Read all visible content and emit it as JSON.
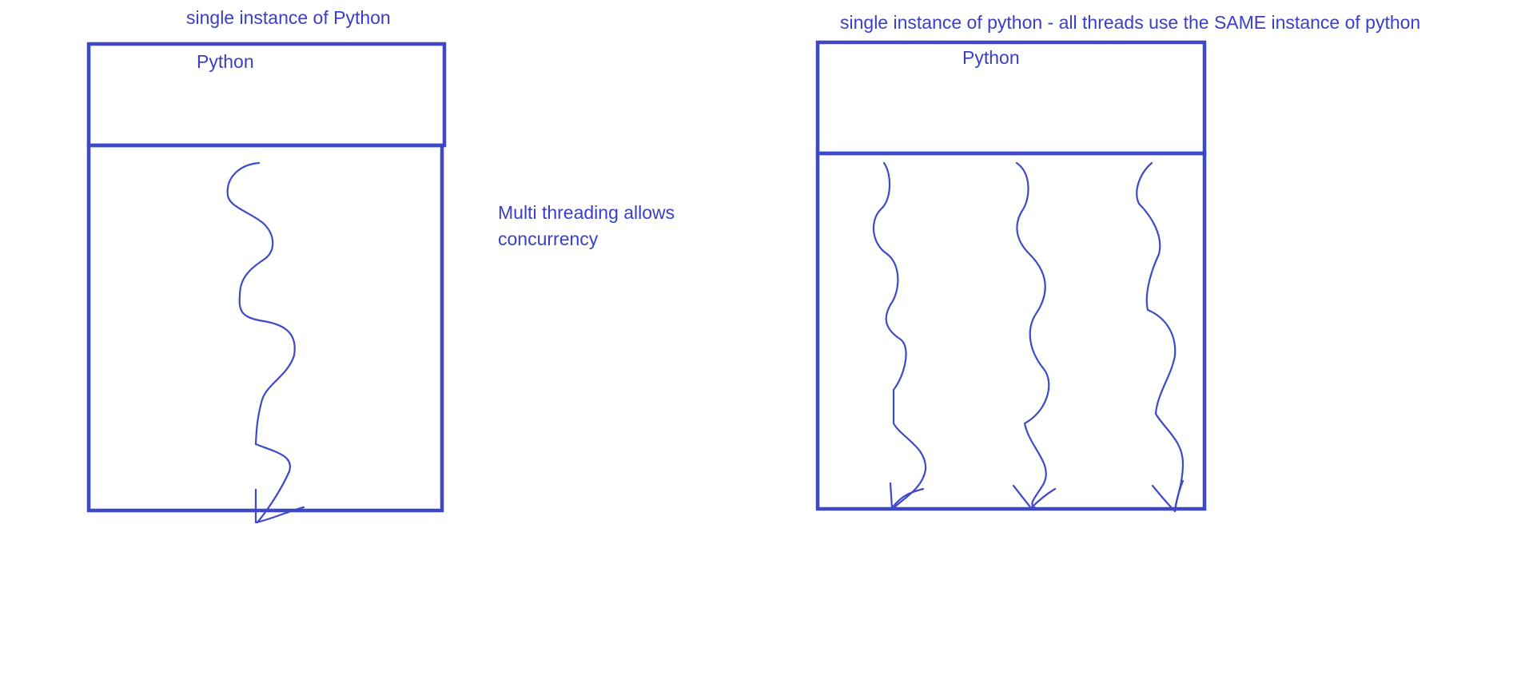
{
  "colors": {
    "ink": "#3f47c9",
    "background": "#ffffff"
  },
  "left_panel": {
    "caption": "single instance of Python",
    "box_label": "Python",
    "thread_count": 1
  },
  "middle_note": {
    "lines": [
      "Multi threading allows",
      "concurrency"
    ]
  },
  "right_panel": {
    "caption": "single instance of python - all threads use the SAME instance of python",
    "box_label": "Python",
    "thread_count": 3
  }
}
